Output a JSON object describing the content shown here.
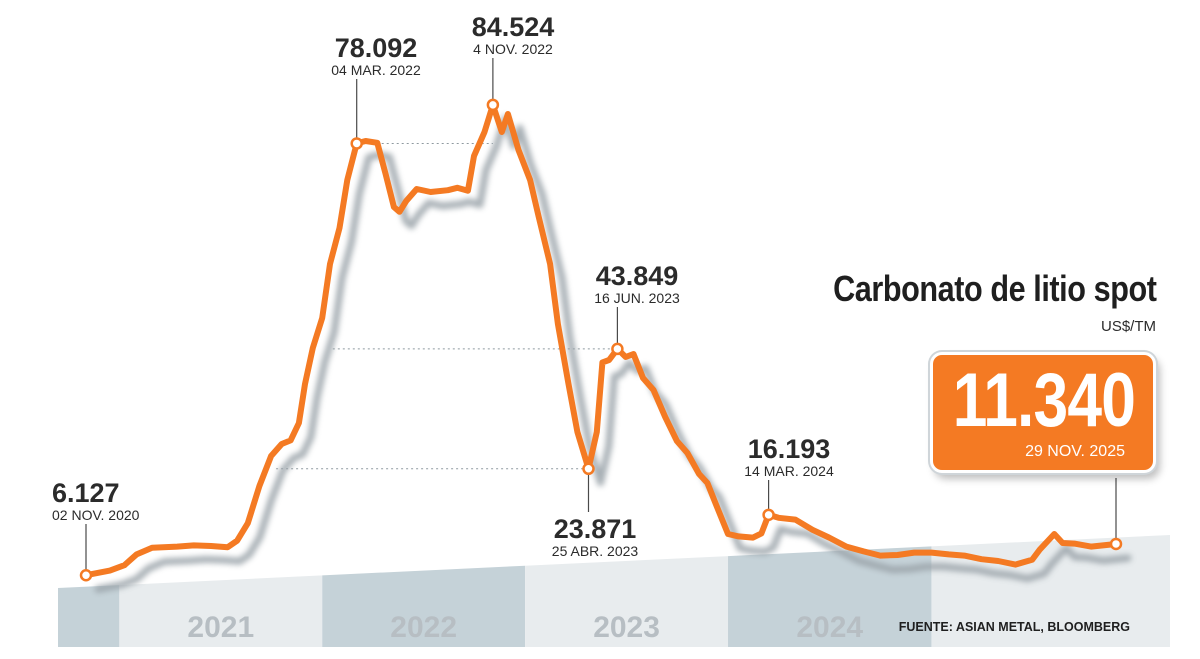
{
  "chart_data": {
    "type": "line",
    "title": "Carbonato de litio spot",
    "unit": "US$/TM",
    "source": "FUENTE: ASIAN METAL, BLOOMBERG",
    "x_start": "2020-11-02",
    "x_end": "2025-11-29",
    "ylim": [
      0,
      90000
    ],
    "year_labels": [
      "2021",
      "2022",
      "2023",
      "2024"
    ],
    "series": [
      {
        "color": "#f47a23",
        "points": [
          [
            "2020-11-02",
            6127
          ],
          [
            "2020-12-15",
            6900
          ],
          [
            "2021-01-10",
            7800
          ],
          [
            "2021-02-01",
            9600
          ],
          [
            "2021-03-01",
            10700
          ],
          [
            "2021-04-15",
            10900
          ],
          [
            "2021-05-15",
            11100
          ],
          [
            "2021-06-15",
            11000
          ],
          [
            "2021-07-15",
            10800
          ],
          [
            "2021-08-01",
            11900
          ],
          [
            "2021-08-20",
            14800
          ],
          [
            "2021-09-10",
            21000
          ],
          [
            "2021-10-01",
            26000
          ],
          [
            "2021-10-20",
            28000
          ],
          [
            "2021-11-05",
            28600
          ],
          [
            "2021-11-20",
            31500
          ],
          [
            "2021-12-01",
            38000
          ],
          [
            "2021-12-15",
            44000
          ],
          [
            "2022-01-01",
            49000
          ],
          [
            "2022-01-15",
            58000
          ],
          [
            "2022-02-01",
            64000
          ],
          [
            "2022-02-15",
            72000
          ],
          [
            "2022-03-04",
            78092
          ],
          [
            "2022-03-20",
            78500
          ],
          [
            "2022-04-10",
            78200
          ],
          [
            "2022-04-25",
            73000
          ],
          [
            "2022-05-10",
            67500
          ],
          [
            "2022-05-20",
            66700
          ],
          [
            "2022-06-01",
            68500
          ],
          [
            "2022-06-20",
            70500
          ],
          [
            "2022-07-15",
            70000
          ],
          [
            "2022-08-15",
            70300
          ],
          [
            "2022-09-01",
            70700
          ],
          [
            "2022-09-20",
            70200
          ],
          [
            "2022-10-01",
            76000
          ],
          [
            "2022-10-20",
            80000
          ],
          [
            "2022-11-04",
            84524
          ],
          [
            "2022-11-20",
            80000
          ],
          [
            "2022-12-01",
            83000
          ],
          [
            "2022-12-20",
            77000
          ],
          [
            "2023-01-10",
            72000
          ],
          [
            "2023-01-25",
            66000
          ],
          [
            "2023-02-15",
            58000
          ],
          [
            "2023-03-01",
            48000
          ],
          [
            "2023-03-20",
            38000
          ],
          [
            "2023-04-05",
            30000
          ],
          [
            "2023-04-25",
            23871
          ],
          [
            "2023-05-10",
            30000
          ],
          [
            "2023-05-20",
            41600
          ],
          [
            "2023-06-01",
            42000
          ],
          [
            "2023-06-16",
            43849
          ],
          [
            "2023-07-01",
            42500
          ],
          [
            "2023-07-15",
            43000
          ],
          [
            "2023-08-01",
            39000
          ],
          [
            "2023-08-20",
            37000
          ],
          [
            "2023-09-10",
            32500
          ],
          [
            "2023-10-01",
            28500
          ],
          [
            "2023-10-20",
            26500
          ],
          [
            "2023-11-10",
            23000
          ],
          [
            "2023-11-25",
            21500
          ],
          [
            "2023-12-10",
            18000
          ],
          [
            "2024-01-01",
            13000
          ],
          [
            "2024-01-20",
            12600
          ],
          [
            "2024-02-15",
            12400
          ],
          [
            "2024-03-01",
            13100
          ],
          [
            "2024-03-14",
            16193
          ],
          [
            "2024-04-01",
            15700
          ],
          [
            "2024-05-01",
            15400
          ],
          [
            "2024-06-01",
            13700
          ],
          [
            "2024-07-01",
            12400
          ],
          [
            "2024-08-01",
            10900
          ],
          [
            "2024-09-01",
            10100
          ],
          [
            "2024-10-01",
            9400
          ],
          [
            "2024-11-01",
            9500
          ],
          [
            "2024-12-01",
            9900
          ],
          [
            "2025-01-01",
            9900
          ],
          [
            "2025-02-01",
            9600
          ],
          [
            "2025-03-01",
            9400
          ],
          [
            "2025-04-01",
            8800
          ],
          [
            "2025-05-01",
            8500
          ],
          [
            "2025-06-01",
            7900
          ],
          [
            "2025-07-01",
            8700
          ],
          [
            "2025-07-15",
            10400
          ],
          [
            "2025-08-10",
            13000
          ],
          [
            "2025-08-25",
            11500
          ],
          [
            "2025-09-15",
            11400
          ],
          [
            "2025-10-15",
            10900
          ],
          [
            "2025-11-29",
            11340
          ]
        ]
      }
    ],
    "annotations": [
      {
        "value": "6.127",
        "date": "02 NOV. 2020",
        "x": "2020-11-02",
        "y": 6127,
        "align": "start"
      },
      {
        "value": "78.092",
        "date": "04 MAR. 2022",
        "x": "2022-03-04",
        "y": 78092,
        "align": "middle"
      },
      {
        "value": "84.524",
        "date": "4 NOV. 2022",
        "x": "2022-11-04",
        "y": 84524,
        "align": "middle"
      },
      {
        "value": "23.871",
        "date": "25 ABR. 2023",
        "x": "2023-04-25",
        "y": 23871,
        "align": "middle"
      },
      {
        "value": "43.849",
        "date": "16 JUN. 2023",
        "x": "2023-06-16",
        "y": 43849,
        "align": "middle"
      },
      {
        "value": "16.193",
        "date": "14 MAR. 2024",
        "x": "2024-03-14",
        "y": 16193,
        "align": "middle"
      }
    ],
    "current": {
      "value": "11.340",
      "date": "29 NOV. 2025"
    }
  },
  "colors": {
    "line": "#f47a23",
    "shadow": "#9aa3a9",
    "area_light": "#e8ecee",
    "area_dark": "#c5d2d8"
  }
}
